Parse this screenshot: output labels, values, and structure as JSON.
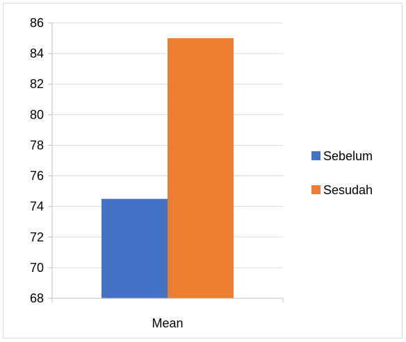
{
  "chart_data": {
    "type": "bar",
    "categories": [
      "Mean"
    ],
    "series": [
      {
        "name": "Sebelum",
        "values": [
          74.5
        ],
        "color": "#4472c4"
      },
      {
        "name": "Sesudah",
        "values": [
          85
        ],
        "color": "#ed7d31"
      }
    ],
    "ylim": [
      68,
      86
    ],
    "yticks": [
      "68",
      "70",
      "72",
      "74",
      "76",
      "78",
      "80",
      "82",
      "84",
      "86"
    ],
    "grid": true,
    "legend_position": "right"
  }
}
